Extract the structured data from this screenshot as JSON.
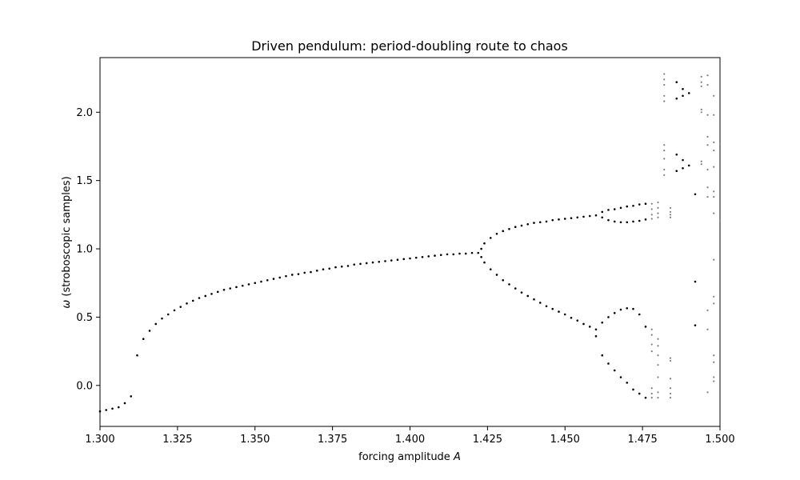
{
  "chart_data": {
    "type": "scatter",
    "title": "Driven pendulum: period-doubling route to chaos",
    "xlabel_text": "forcing amplitude ",
    "xlabel_var": "A",
    "ylabel_var": "ω",
    "ylabel_text": " (stroboscopic samples)",
    "xlim": [
      1.3,
      1.5
    ],
    "ylim": [
      -0.3,
      2.4
    ],
    "xticks": [
      1.3,
      1.325,
      1.35,
      1.375,
      1.4,
      1.425,
      1.45,
      1.475,
      1.5
    ],
    "xtick_labels": [
      "1.300",
      "1.325",
      "1.350",
      "1.375",
      "1.400",
      "1.425",
      "1.450",
      "1.475",
      "1.500"
    ],
    "yticks": [
      0.0,
      0.5,
      1.0,
      1.5,
      2.0
    ],
    "ytick_labels": [
      "0.0",
      "0.5",
      "1.0",
      "1.5",
      "2.0"
    ],
    "grid": false,
    "colors": {
      "periodic": "#000000",
      "chaotic": "#7f7f7f"
    },
    "series": [
      {
        "values": [
          [
            1.3,
            -0.19
          ],
          [
            1.302,
            -0.18
          ],
          [
            1.304,
            -0.17
          ],
          [
            1.306,
            -0.16
          ],
          [
            1.308,
            -0.13
          ],
          [
            1.31,
            -0.08
          ],
          [
            1.312,
            0.22
          ],
          [
            1.314,
            0.34
          ],
          [
            1.316,
            0.4
          ],
          [
            1.318,
            0.45
          ],
          [
            1.32,
            0.49
          ],
          [
            1.322,
            0.52
          ],
          [
            1.324,
            0.55
          ],
          [
            1.326,
            0.575
          ],
          [
            1.328,
            0.6
          ],
          [
            1.33,
            0.62
          ],
          [
            1.332,
            0.64
          ],
          [
            1.334,
            0.655
          ],
          [
            1.336,
            0.67
          ],
          [
            1.338,
            0.685
          ],
          [
            1.34,
            0.7
          ],
          [
            1.342,
            0.71
          ],
          [
            1.344,
            0.72
          ],
          [
            1.346,
            0.73
          ],
          [
            1.348,
            0.74
          ],
          [
            1.35,
            0.75
          ],
          [
            1.352,
            0.76
          ],
          [
            1.354,
            0.77
          ],
          [
            1.356,
            0.78
          ],
          [
            1.358,
            0.79
          ],
          [
            1.36,
            0.8
          ],
          [
            1.362,
            0.81
          ],
          [
            1.364,
            0.815
          ],
          [
            1.366,
            0.825
          ],
          [
            1.368,
            0.83
          ],
          [
            1.37,
            0.84
          ],
          [
            1.372,
            0.85
          ],
          [
            1.374,
            0.855
          ],
          [
            1.376,
            0.865
          ],
          [
            1.378,
            0.87
          ],
          [
            1.38,
            0.875
          ],
          [
            1.382,
            0.885
          ],
          [
            1.384,
            0.89
          ],
          [
            1.386,
            0.895
          ],
          [
            1.388,
            0.9
          ],
          [
            1.39,
            0.905
          ],
          [
            1.392,
            0.91
          ],
          [
            1.394,
            0.915
          ],
          [
            1.396,
            0.92
          ],
          [
            1.398,
            0.925
          ],
          [
            1.4,
            0.93
          ],
          [
            1.402,
            0.935
          ],
          [
            1.404,
            0.94
          ],
          [
            1.406,
            0.945
          ],
          [
            1.408,
            0.95
          ],
          [
            1.41,
            0.955
          ],
          [
            1.412,
            0.96
          ],
          [
            1.414,
            0.96
          ],
          [
            1.416,
            0.965
          ],
          [
            1.418,
            0.965
          ],
          [
            1.42,
            0.97
          ],
          [
            1.422,
            0.97
          ],
          [
            1.423,
            1.0
          ],
          [
            1.424,
            1.04
          ],
          [
            1.426,
            1.08
          ],
          [
            1.428,
            1.11
          ],
          [
            1.43,
            1.13
          ],
          [
            1.432,
            1.145
          ],
          [
            1.434,
            1.16
          ],
          [
            1.436,
            1.17
          ],
          [
            1.438,
            1.18
          ],
          [
            1.44,
            1.19
          ],
          [
            1.442,
            1.195
          ],
          [
            1.444,
            1.2
          ],
          [
            1.446,
            1.21
          ],
          [
            1.448,
            1.215
          ],
          [
            1.45,
            1.22
          ],
          [
            1.452,
            1.225
          ],
          [
            1.454,
            1.23
          ],
          [
            1.456,
            1.235
          ],
          [
            1.458,
            1.24
          ],
          [
            1.46,
            1.245
          ],
          [
            1.423,
            0.94
          ],
          [
            1.424,
            0.9
          ],
          [
            1.426,
            0.85
          ],
          [
            1.428,
            0.81
          ],
          [
            1.43,
            0.77
          ],
          [
            1.432,
            0.74
          ],
          [
            1.434,
            0.71
          ],
          [
            1.436,
            0.68
          ],
          [
            1.438,
            0.655
          ],
          [
            1.44,
            0.63
          ],
          [
            1.442,
            0.605
          ],
          [
            1.444,
            0.58
          ],
          [
            1.446,
            0.56
          ],
          [
            1.448,
            0.54
          ],
          [
            1.45,
            0.52
          ],
          [
            1.452,
            0.495
          ],
          [
            1.454,
            0.475
          ],
          [
            1.456,
            0.45
          ],
          [
            1.458,
            0.43
          ],
          [
            1.46,
            0.41
          ],
          [
            1.46,
            0.36
          ],
          [
            1.462,
            1.27
          ],
          [
            1.464,
            1.285
          ],
          [
            1.466,
            1.29
          ],
          [
            1.468,
            1.3
          ],
          [
            1.47,
            1.31
          ],
          [
            1.472,
            1.315
          ],
          [
            1.474,
            1.325
          ],
          [
            1.476,
            1.33
          ],
          [
            1.462,
            1.23
          ],
          [
            1.464,
            1.21
          ],
          [
            1.466,
            1.2
          ],
          [
            1.468,
            1.195
          ],
          [
            1.47,
            1.195
          ],
          [
            1.472,
            1.2
          ],
          [
            1.474,
            1.205
          ],
          [
            1.476,
            1.215
          ],
          [
            1.462,
            0.46
          ],
          [
            1.464,
            0.5
          ],
          [
            1.466,
            0.53
          ],
          [
            1.468,
            0.555
          ],
          [
            1.47,
            0.565
          ],
          [
            1.472,
            0.56
          ],
          [
            1.474,
            0.52
          ],
          [
            1.476,
            0.43
          ],
          [
            1.462,
            0.22
          ],
          [
            1.464,
            0.16
          ],
          [
            1.466,
            0.11
          ],
          [
            1.468,
            0.06
          ],
          [
            1.47,
            0.02
          ],
          [
            1.472,
            -0.03
          ],
          [
            1.474,
            -0.06
          ],
          [
            1.476,
            -0.09
          ],
          [
            1.486,
            2.22
          ],
          [
            1.488,
            2.17
          ],
          [
            1.49,
            2.14
          ],
          [
            1.486,
            2.1
          ],
          [
            1.488,
            2.12
          ],
          [
            1.486,
            1.69
          ],
          [
            1.488,
            1.65
          ],
          [
            1.49,
            1.61
          ],
          [
            1.486,
            1.57
          ],
          [
            1.488,
            1.59
          ],
          [
            1.492,
            1.4
          ],
          [
            1.492,
            0.76
          ],
          [
            1.492,
            0.44
          ]
        ]
      },
      {
        "values": [
          [
            1.478,
            1.33
          ],
          [
            1.478,
            1.29
          ],
          [
            1.478,
            1.25
          ],
          [
            1.478,
            1.22
          ],
          [
            1.478,
            0.41
          ],
          [
            1.478,
            0.37
          ],
          [
            1.478,
            0.3
          ],
          [
            1.478,
            0.25
          ],
          [
            1.478,
            -0.02
          ],
          [
            1.478,
            -0.06
          ],
          [
            1.478,
            -0.09
          ],
          [
            1.48,
            1.34
          ],
          [
            1.48,
            1.3
          ],
          [
            1.48,
            1.26
          ],
          [
            1.48,
            1.23
          ],
          [
            1.48,
            0.34
          ],
          [
            1.48,
            0.29
          ],
          [
            1.48,
            0.22
          ],
          [
            1.48,
            0.15
          ],
          [
            1.48,
            0.06
          ],
          [
            1.48,
            -0.05
          ],
          [
            1.48,
            -0.09
          ],
          [
            1.482,
            2.28
          ],
          [
            1.482,
            2.24
          ],
          [
            1.482,
            2.2
          ],
          [
            1.482,
            2.12
          ],
          [
            1.482,
            2.08
          ],
          [
            1.482,
            1.76
          ],
          [
            1.482,
            1.72
          ],
          [
            1.482,
            1.66
          ],
          [
            1.482,
            1.58
          ],
          [
            1.482,
            1.54
          ],
          [
            1.484,
            1.3
          ],
          [
            1.484,
            1.27
          ],
          [
            1.484,
            1.25
          ],
          [
            1.484,
            1.23
          ],
          [
            1.484,
            0.2
          ],
          [
            1.484,
            0.18
          ],
          [
            1.484,
            0.05
          ],
          [
            1.484,
            -0.02
          ],
          [
            1.484,
            -0.06
          ],
          [
            1.484,
            -0.09
          ],
          [
            1.494,
            2.26
          ],
          [
            1.494,
            2.22
          ],
          [
            1.494,
            2.19
          ],
          [
            1.494,
            2.02
          ],
          [
            1.494,
            2.0
          ],
          [
            1.494,
            1.64
          ],
          [
            1.494,
            1.62
          ],
          [
            1.496,
            2.27
          ],
          [
            1.496,
            2.2
          ],
          [
            1.496,
            1.98
          ],
          [
            1.496,
            1.82
          ],
          [
            1.496,
            1.76
          ],
          [
            1.496,
            1.58
          ],
          [
            1.496,
            1.45
          ],
          [
            1.496,
            1.38
          ],
          [
            1.496,
            0.55
          ],
          [
            1.496,
            0.41
          ],
          [
            1.496,
            -0.05
          ],
          [
            1.498,
            2.12
          ],
          [
            1.498,
            1.98
          ],
          [
            1.498,
            1.78
          ],
          [
            1.498,
            1.72
          ],
          [
            1.498,
            1.6
          ],
          [
            1.498,
            1.42
          ],
          [
            1.498,
            1.38
          ],
          [
            1.498,
            1.26
          ],
          [
            1.498,
            0.92
          ],
          [
            1.498,
            0.65
          ],
          [
            1.498,
            0.6
          ],
          [
            1.498,
            0.22
          ],
          [
            1.498,
            0.17
          ],
          [
            1.498,
            0.06
          ],
          [
            1.498,
            0.03
          ],
          [
            1.5,
            1.77
          ],
          [
            1.5,
            1.21
          ]
        ]
      }
    ]
  }
}
